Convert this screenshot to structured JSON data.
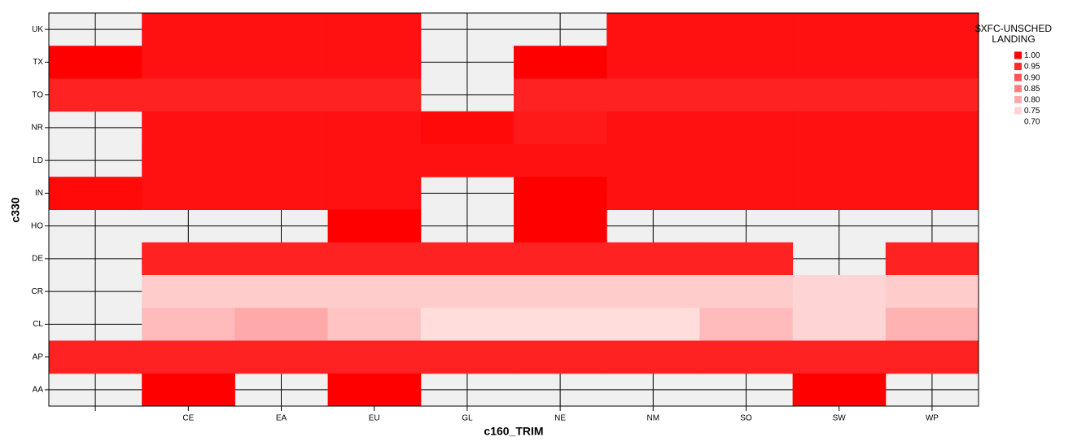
{
  "chart_data": {
    "type": "heatmap",
    "x_label": "c160_TRIM",
    "y_label": "c330",
    "x_categories": [
      null,
      "CE",
      "EA",
      "EU",
      "GL",
      "NE",
      "NM",
      "SO",
      "SW",
      "WP"
    ],
    "y_categories": [
      "UK",
      "TX",
      "TO",
      "NR",
      "LD",
      "IN",
      "HO",
      "DE",
      "CR",
      "CL",
      "AP",
      "AA"
    ],
    "values": [
      [
        null,
        0.98,
        0.98,
        0.98,
        null,
        null,
        0.98,
        0.98,
        0.98,
        0.98
      ],
      [
        1.0,
        0.98,
        0.98,
        0.98,
        null,
        1.0,
        0.98,
        0.98,
        0.98,
        0.98
      ],
      [
        0.96,
        0.96,
        0.96,
        0.96,
        null,
        0.96,
        0.96,
        0.96,
        0.96,
        0.96
      ],
      [
        null,
        0.98,
        0.98,
        0.98,
        0.99,
        0.97,
        0.98,
        0.98,
        0.98,
        0.98
      ],
      [
        null,
        0.98,
        0.98,
        0.98,
        0.98,
        0.98,
        0.98,
        0.98,
        0.98,
        0.98
      ],
      [
        0.99,
        0.98,
        0.98,
        0.98,
        null,
        1.0,
        0.98,
        0.98,
        0.98,
        0.98
      ],
      [
        null,
        null,
        null,
        1.0,
        null,
        1.0,
        null,
        null,
        null,
        null
      ],
      [
        null,
        0.96,
        0.96,
        0.96,
        0.96,
        0.96,
        0.96,
        0.96,
        null,
        0.96
      ],
      [
        null,
        0.76,
        0.76,
        0.76,
        0.76,
        0.76,
        0.76,
        0.76,
        0.75,
        0.76
      ],
      [
        null,
        0.78,
        0.8,
        0.77,
        0.74,
        0.74,
        0.74,
        0.78,
        0.75,
        0.79
      ],
      [
        0.96,
        0.96,
        0.96,
        0.96,
        0.96,
        0.96,
        0.96,
        0.96,
        0.96,
        0.96
      ],
      [
        null,
        1.0,
        null,
        1.0,
        null,
        null,
        null,
        null,
        1.0,
        null
      ]
    ],
    "legend_title": "$XFC-UNSCHED LANDING",
    "clim": [
      0.7,
      1.0
    ],
    "color_low": "#ffffff",
    "color_high": "#ff0000",
    "cticks": [
      {
        "value": 1.0,
        "label": "1.00"
      },
      {
        "value": 0.95,
        "label": "0.95"
      },
      {
        "value": 0.9,
        "label": "0.90"
      },
      {
        "value": 0.85,
        "label": "0.85"
      },
      {
        "value": 0.8,
        "label": "0.80"
      },
      {
        "value": 0.75,
        "label": "0.75"
      },
      {
        "value": 0.7,
        "label": "0.70"
      }
    ],
    "grid": true
  }
}
